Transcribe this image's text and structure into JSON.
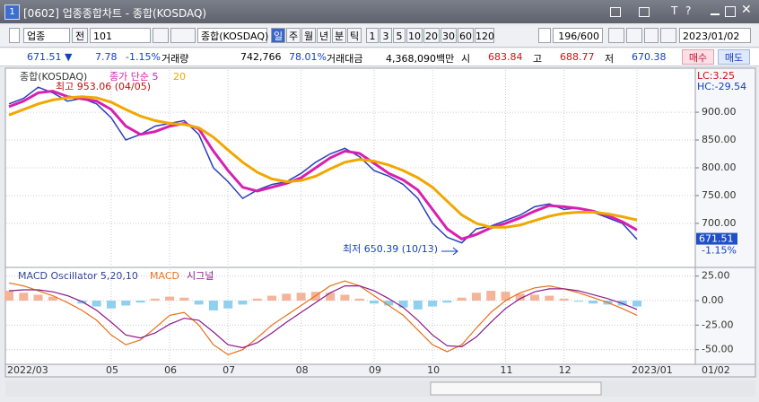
{
  "window": {
    "number": "1",
    "title": "[0602] 업종종합차트 - 종합(KOSDAQ)",
    "icons": [
      "T",
      "?"
    ]
  },
  "toolbar": {
    "sector": "업종",
    "all": "전",
    "code": "101",
    "name": "종합(KOSDAQ)",
    "periods": [
      "일",
      "주",
      "월",
      "년",
      "분",
      "틱"
    ],
    "intervals": [
      "1",
      "3",
      "5",
      "10",
      "20",
      "30",
      "60",
      "120"
    ],
    "count": "196/600",
    "date": "2023/01/02"
  },
  "quote": {
    "price": "671.51 ▼",
    "change": "7.78",
    "rate": "-1.15%",
    "volume_label": "거래량",
    "volume": "742,766",
    "volume_rate": "78.01%",
    "amount_label": "거래대금",
    "amount": "4,368,090백만",
    "open_label": "시",
    "open": "683.84",
    "high_label": "고",
    "high": "688.77",
    "low_label": "저",
    "low": "670.38",
    "buy": "매수",
    "sell": "매도"
  },
  "chart_data": [
    {
      "type": "line",
      "categories": [
        "2022/03",
        null,
        null,
        null,
        null,
        null,
        null,
        "05",
        null,
        null,
        null,
        "06",
        null,
        null,
        null,
        "07",
        null,
        null,
        null,
        null,
        "08",
        null,
        null,
        null,
        null,
        "09",
        null,
        null,
        null,
        "10",
        null,
        null,
        null,
        null,
        "11",
        null,
        null,
        null,
        "12",
        null,
        null,
        null,
        null,
        "2023/01"
      ],
      "x_end_label": "01/02",
      "series": [
        {
          "name": "종합(KOSDAQ)",
          "color": "#2a3fb8",
          "values": [
            915,
            925,
            945,
            935,
            920,
            925,
            915,
            890,
            850,
            860,
            875,
            880,
            885,
            860,
            800,
            775,
            745,
            760,
            770,
            775,
            790,
            810,
            825,
            835,
            820,
            795,
            785,
            770,
            745,
            700,
            675,
            665,
            690,
            695,
            705,
            715,
            730,
            735,
            725,
            728,
            720,
            710,
            700,
            671.51
          ]
        },
        {
          "name": "종가 단순 5",
          "color": "#d81fb0",
          "values": [
            910,
            920,
            935,
            938,
            928,
            924,
            920,
            905,
            875,
            860,
            865,
            875,
            880,
            870,
            830,
            795,
            765,
            758,
            765,
            772,
            782,
            800,
            818,
            830,
            826,
            808,
            790,
            778,
            760,
            725,
            690,
            672,
            680,
            692,
            700,
            710,
            722,
            732,
            730,
            727,
            722,
            714,
            703,
            688
          ]
        },
        {
          "name": "20",
          "color": "#f0a800",
          "values": [
            895,
            905,
            915,
            922,
            926,
            928,
            926,
            918,
            905,
            893,
            885,
            880,
            878,
            872,
            855,
            832,
            810,
            792,
            780,
            775,
            777,
            785,
            798,
            810,
            815,
            812,
            805,
            795,
            782,
            765,
            740,
            715,
            700,
            693,
            693,
            697,
            705,
            713,
            718,
            720,
            720,
            717,
            712,
            706
          ]
        }
      ],
      "ylim": [
        624,
        976
      ],
      "yticks": [
        {
          "value": 900,
          "label": "900.00"
        },
        {
          "value": 850,
          "label": "850.00"
        },
        {
          "value": 800,
          "label": "800.00"
        },
        {
          "value": 750,
          "label": "750.00"
        },
        {
          "value": 700,
          "label": "700.00"
        }
      ],
      "grid": true,
      "annotations": {
        "high": "최고 953.06 (04/05)",
        "low": "최저 650.39 (10/13)",
        "lc": "LC:3.25",
        "hc": "HC:-29.54"
      }
    },
    {
      "type": "combo",
      "series": [
        {
          "name": "MACD Oscillator 5,20,10",
          "kind": "bar",
          "color": "#f4b49a",
          "negative_color": "#8fd0ee",
          "values": [
            10,
            8,
            6,
            4,
            0,
            -3,
            -6,
            -8,
            -5,
            -2,
            2,
            4,
            3,
            -4,
            -10,
            -8,
            -4,
            2,
            5,
            7,
            8,
            9,
            8,
            6,
            2,
            -3,
            -5,
            -7,
            -9,
            -6,
            -2,
            3,
            8,
            10,
            9,
            7,
            6,
            5,
            2,
            -1,
            -3,
            -4,
            -5,
            -6
          ]
        },
        {
          "name": "MACD",
          "kind": "line",
          "color": "#e8701a",
          "values": [
            18,
            15,
            10,
            5,
            -2,
            -10,
            -20,
            -35,
            -45,
            -40,
            -28,
            -15,
            -12,
            -25,
            -45,
            -55,
            -50,
            -38,
            -25,
            -15,
            -5,
            5,
            15,
            20,
            15,
            5,
            -5,
            -15,
            -30,
            -45,
            -52,
            -45,
            -28,
            -12,
            0,
            8,
            13,
            15,
            12,
            8,
            3,
            -2,
            -8,
            -15
          ]
        },
        {
          "name": "시그널",
          "kind": "line",
          "color": "#8a1a8a",
          "values": [
            10,
            11,
            11,
            9,
            5,
            -1,
            -10,
            -22,
            -35,
            -38,
            -33,
            -24,
            -18,
            -20,
            -32,
            -45,
            -48,
            -43,
            -33,
            -22,
            -12,
            -2,
            8,
            15,
            15,
            10,
            2,
            -7,
            -20,
            -35,
            -46,
            -47,
            -37,
            -22,
            -8,
            2,
            9,
            12,
            12,
            10,
            6,
            2,
            -3,
            -9
          ]
        }
      ],
      "ylim": [
        -64,
        32
      ],
      "yticks": [
        {
          "value": 25,
          "label": "25.00"
        },
        {
          "value": 0,
          "label": "0.00"
        },
        {
          "value": -25,
          "label": "-25.00"
        },
        {
          "value": -50,
          "label": "-50.00"
        }
      ],
      "grid": true
    }
  ]
}
